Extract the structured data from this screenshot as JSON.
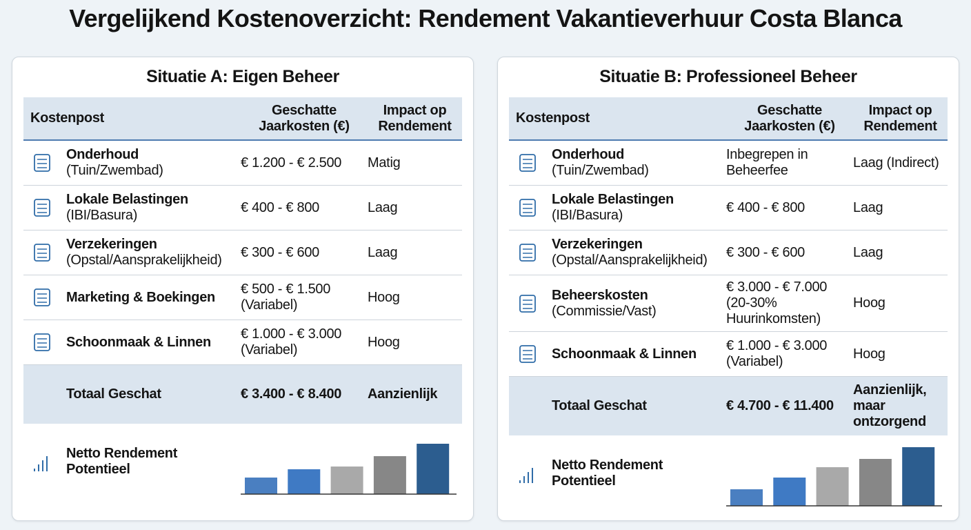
{
  "title": "Vergelijkend Kostenoverzicht: Rendement Vakantieverhuur Costa Blanca",
  "panels": [
    {
      "title": "Situatie A: Eigen Beheer",
      "header": [
        "Kostenpost",
        "Geschatte Jaarkosten (€)",
        "Impact op Rendement"
      ],
      "rows": [
        {
          "name": "Onderhoud",
          "detail": "(Tuin/Zwembad)",
          "cost": "€ 1.200 - € 2.500",
          "impact": "Matig"
        },
        {
          "name": "Lokale Belastingen",
          "detail": "(IBI/Basura)",
          "cost": "€ 400 - € 800",
          "impact": "Laag"
        },
        {
          "name": "Verzekeringen",
          "detail": "(Opstal/Aansprakelijkheid)",
          "cost": "€ 300 - € 600",
          "impact": "Laag"
        },
        {
          "name": "Marketing & Boekingen",
          "cost": "€ 500 - € 1.500 (Variabel)",
          "impact": "Hoog"
        },
        {
          "name": "Schoonmaak & Linnen",
          "cost": "€ 1.000 - € 3.000 (Variabel)",
          "impact": "Hoog"
        }
      ],
      "total": {
        "label": "Totaal Geschat",
        "cost": "€ 3.400 - € 8.400",
        "impact": "Aanzienlijk"
      },
      "chart": {
        "label": "Netto Rendement Potentieel",
        "values": [
          24,
          36,
          40,
          55,
          73
        ],
        "colors": [
          "#4a7fc1",
          "#3f7ac4",
          "#a9a9a9",
          "#878787",
          "#2c5d8f"
        ]
      }
    },
    {
      "title": "Situatie B: Professioneel Beheer",
      "header": [
        "Kostenpost",
        "Geschatte Jaarkosten (€)",
        "Impact op Rendement"
      ],
      "rows": [
        {
          "name": "Onderhoud",
          "detail": "(Tuin/Zwembad)",
          "cost": "Inbegrepen in Beheerfee",
          "impact": "Laag (Indirect)"
        },
        {
          "name": "Lokale Belastingen",
          "detail": "(IBI/Basura)",
          "cost": "€ 400 - € 800",
          "impact": "Laag"
        },
        {
          "name": "Verzekeringen",
          "detail": "(Opstal/Aansprakelijkheid)",
          "cost": "€ 300 - € 600",
          "impact": "Laag"
        },
        {
          "name": "Beheerskosten",
          "detail": "(Commissie/Vast)",
          "cost": "€ 3.000 - € 7.000 (20-30% Huurinkomsten)",
          "impact": "Hoog"
        },
        {
          "name": "Schoonmaak & Linnen",
          "cost": "€ 1.000 - € 3.000 (Variabel)",
          "impact": "Hoog"
        }
      ],
      "total": {
        "label": "Totaal Geschat",
        "cost": "€ 4.700 - € 11.400",
        "impact": "Aanzienlijk, maar ontzorgend"
      },
      "chart": {
        "label": "Netto Rendement Potentieel",
        "values": [
          24,
          41,
          56,
          68,
          85
        ],
        "colors": [
          "#4a7fc1",
          "#3f7ac4",
          "#a9a9a9",
          "#878787",
          "#2c5d8f"
        ]
      }
    }
  ]
}
